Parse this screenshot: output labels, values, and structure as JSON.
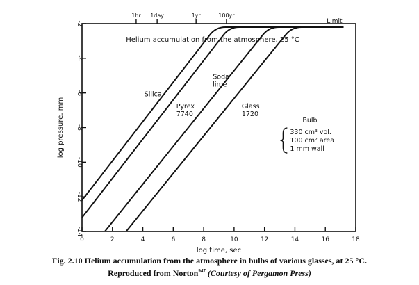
{
  "chart_data": {
    "type": "line",
    "title": "Helium accumulation from the atmosphere, 25 °C",
    "xlabel": "log time, sec",
    "ylabel": "log pressure, mm",
    "xlim": [
      0,
      18
    ],
    "ylim": [
      -14,
      -2
    ],
    "x_ticks": [
      0,
      2,
      4,
      6,
      8,
      10,
      12,
      14,
      16,
      18
    ],
    "x_tick_labels": [
      "0",
      "2",
      "4",
      "6",
      "8",
      "10",
      "12",
      "14",
      "16",
      "18"
    ],
    "y_ticks": [
      -2,
      -4,
      -6,
      -8,
      -10,
      -12,
      -14
    ],
    "y_tick_labels": [
      "-2",
      "-4",
      "-6",
      "-8",
      "-10",
      "-12",
      "-14"
    ],
    "top_axis_ticks": [
      {
        "label": "1hr",
        "value": 3.56
      },
      {
        "label": "1day",
        "value": 4.94
      },
      {
        "label": "1yr",
        "value": 7.5
      },
      {
        "label": "100yr",
        "value": 9.5
      }
    ],
    "limit_label": "Limit",
    "limit_value": -2.2,
    "series": [
      {
        "name": "Silica",
        "points": [
          [
            0,
            -12.2
          ],
          [
            8.8,
            -2.2
          ],
          [
            17.2,
            -2.2
          ]
        ]
      },
      {
        "name": "Pyrex 7740",
        "points": [
          [
            0,
            -13.2
          ],
          [
            9.7,
            -2.2
          ],
          [
            17.2,
            -2.2
          ]
        ]
      },
      {
        "name": "Soda lime",
        "points": [
          [
            1.5,
            -14
          ],
          [
            12.3,
            -2.2
          ],
          [
            17.2,
            -2.2
          ]
        ]
      },
      {
        "name": "Glass 1720",
        "points": [
          [
            2.9,
            -14
          ],
          [
            13.8,
            -2.2
          ],
          [
            17.2,
            -2.2
          ]
        ]
      }
    ],
    "series_labels": [
      {
        "lines": [
          "Silica"
        ],
        "x": 4.1,
        "y": -6.2
      },
      {
        "lines": [
          "Pyrex",
          "7740"
        ],
        "x": 6.2,
        "y": -6.9
      },
      {
        "lines": [
          "Soda",
          "lime"
        ],
        "x": 8.6,
        "y": -5.2
      },
      {
        "lines": [
          "Glass",
          "1720"
        ],
        "x": 10.5,
        "y": -6.9
      }
    ],
    "annotation": {
      "title": "Bulb",
      "lines": [
        "330 cm³ vol.",
        "100 cm² area",
        "1 mm  wall"
      ]
    },
    "grid": false,
    "legend": "none"
  },
  "caption": {
    "line1": "Fig. 2.10 Helium accumulation from the atmosphere in bulbs of various glasses, at 25 °C.",
    "line2_prefix": "Reproduced from Norton",
    "line2_ref": "947",
    "line2_credit": "(Courtesy of Pergamon Press)"
  }
}
